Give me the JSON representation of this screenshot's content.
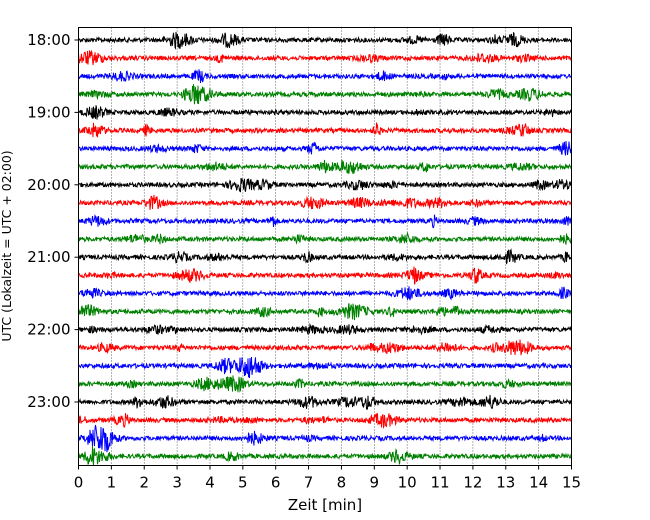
{
  "chart_data": {
    "type": "line",
    "title": "",
    "xlabel": "Zeit  [min]",
    "ylabel": "UTC (Lokalzeit = UTC + 02:00)",
    "xlim": [
      0,
      15
    ],
    "x_ticks": [
      "0",
      "1",
      "2",
      "3",
      "4",
      "5",
      "6",
      "7",
      "8",
      "9",
      "10",
      "11",
      "12",
      "13",
      "14",
      "15"
    ],
    "y_ticks": [
      "18:00",
      "19:00",
      "20:00",
      "21:00",
      "22:00",
      "23:00"
    ],
    "grid_x": true,
    "trace_interval_min": 15,
    "trace_colors": [
      "#000000",
      "#ff0000",
      "#0000ff",
      "#008000"
    ],
    "traces": [
      {
        "start": "18:00",
        "color": "#000000"
      },
      {
        "start": "18:15",
        "color": "#ff0000"
      },
      {
        "start": "18:30",
        "color": "#0000ff"
      },
      {
        "start": "18:45",
        "color": "#008000"
      },
      {
        "start": "19:00",
        "color": "#000000"
      },
      {
        "start": "19:15",
        "color": "#ff0000"
      },
      {
        "start": "19:30",
        "color": "#0000ff"
      },
      {
        "start": "19:45",
        "color": "#008000"
      },
      {
        "start": "20:00",
        "color": "#000000"
      },
      {
        "start": "20:15",
        "color": "#ff0000"
      },
      {
        "start": "20:30",
        "color": "#0000ff"
      },
      {
        "start": "20:45",
        "color": "#008000"
      },
      {
        "start": "21:00",
        "color": "#000000"
      },
      {
        "start": "21:15",
        "color": "#ff0000"
      },
      {
        "start": "21:30",
        "color": "#0000ff"
      },
      {
        "start": "21:45",
        "color": "#008000"
      },
      {
        "start": "22:00",
        "color": "#000000"
      },
      {
        "start": "22:15",
        "color": "#ff0000"
      },
      {
        "start": "22:30",
        "color": "#0000ff"
      },
      {
        "start": "22:45",
        "color": "#008000"
      },
      {
        "start": "23:00",
        "color": "#000000"
      },
      {
        "start": "23:15",
        "color": "#ff0000"
      },
      {
        "start": "23:30",
        "color": "#0000ff"
      },
      {
        "start": "23:45",
        "color": "#008000"
      }
    ]
  }
}
